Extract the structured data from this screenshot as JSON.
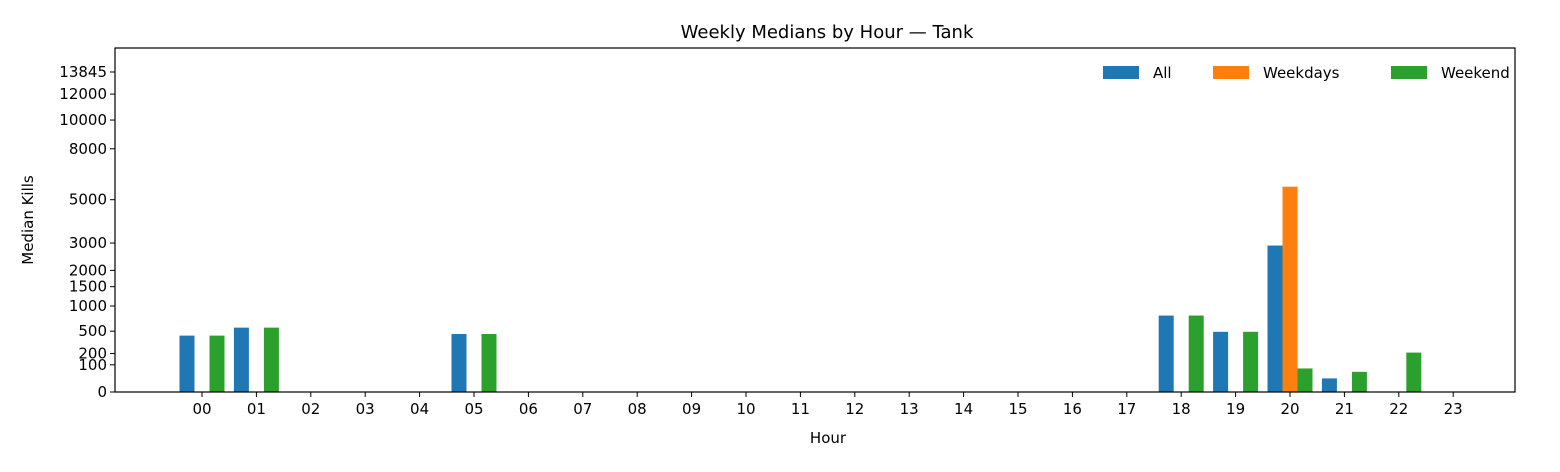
{
  "chart_data": {
    "type": "bar",
    "title": "Weekly Medians by Hour — Tank",
    "xlabel": "Hour",
    "ylabel": "Median Kills",
    "categories": [
      "00",
      "01",
      "02",
      "03",
      "04",
      "05",
      "06",
      "07",
      "08",
      "09",
      "10",
      "11",
      "12",
      "13",
      "14",
      "15",
      "16",
      "17",
      "18",
      "19",
      "20",
      "21",
      "22",
      "23"
    ],
    "series": [
      {
        "name": "All",
        "color": "#1f77b4",
        "values": [
          430,
          560,
          0,
          0,
          0,
          455,
          0,
          0,
          0,
          0,
          0,
          0,
          0,
          0,
          0,
          0,
          0,
          0,
          790,
          490,
          2900,
          25,
          0,
          0
        ]
      },
      {
        "name": "Weekdays",
        "color": "#ff7f0e",
        "values": [
          0,
          0,
          0,
          0,
          0,
          0,
          0,
          0,
          0,
          0,
          0,
          0,
          0,
          0,
          0,
          0,
          0,
          0,
          0,
          0,
          5700,
          0,
          0,
          0
        ]
      },
      {
        "name": "Weekend",
        "color": "#2ca02c",
        "values": [
          430,
          560,
          0,
          0,
          0,
          455,
          0,
          0,
          0,
          0,
          0,
          0,
          0,
          0,
          0,
          0,
          0,
          0,
          790,
          490,
          75,
          55,
          210,
          0
        ]
      }
    ],
    "y_ticks": [
      0,
      100,
      200,
      500,
      1000,
      1500,
      2000,
      3000,
      5000,
      8000,
      10000,
      12000,
      13845
    ],
    "ylim": [
      0,
      16000
    ],
    "y_scale": "sqrt",
    "legend_position": "top-right",
    "grid": false
  }
}
